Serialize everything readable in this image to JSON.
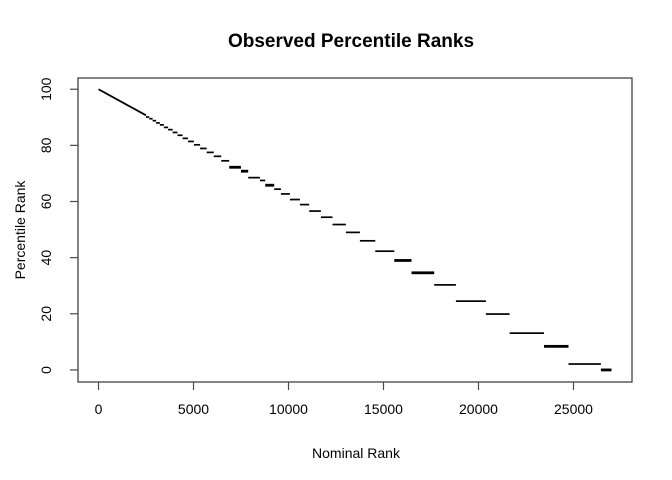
{
  "figure": {
    "background": "#ffffff",
    "foreground": "#000000",
    "frame_color": "#333333",
    "tick_color": "#4a4a4a"
  },
  "chart_data": {
    "type": "scatter",
    "title": "Observed Percentile Ranks",
    "xlabel": "Nominal Rank",
    "ylabel": "Percentile Rank",
    "point_color": "#000000",
    "n_points": 27000,
    "xlim": [
      -1080,
      28080
    ],
    "ylim": [
      -4.3,
      104
    ],
    "grid": false,
    "legend": false,
    "x_ticks": {
      "values": [
        0,
        5000,
        10000,
        15000,
        20000,
        25000
      ],
      "labels": [
        "0",
        "5000",
        "10000",
        "15000",
        "20000",
        "25000"
      ]
    },
    "y_ticks": {
      "values": [
        0,
        20,
        40,
        60,
        80,
        100
      ],
      "labels": [
        "0",
        "20",
        "40",
        "60",
        "80",
        "100"
      ]
    },
    "relationship": "observed percentile = 100 * (1 - tie_group_end / 27000); tie groups lengthen toward high nominal ranks",
    "dense_line": {
      "x_start": 0,
      "y_start": 100,
      "x_end": 2500,
      "y_end": 90.7
    },
    "tie_segments": [
      [
        2500,
        2673,
        90.1,
        1
      ],
      [
        2673,
        2847,
        89.5,
        1
      ],
      [
        2847,
        3032,
        88.8,
        1
      ],
      [
        3032,
        3229,
        88.0,
        1
      ],
      [
        3229,
        3439,
        87.3,
        1
      ],
      [
        3439,
        3663,
        86.4,
        1
      ],
      [
        3663,
        3901,
        85.6,
        1
      ],
      [
        3901,
        4155,
        84.6,
        1
      ],
      [
        4155,
        4425,
        83.6,
        1
      ],
      [
        4425,
        4713,
        82.5,
        1
      ],
      [
        4713,
        5020,
        81.4,
        1
      ],
      [
        5020,
        5346,
        80.2,
        1
      ],
      [
        5346,
        5694,
        78.9,
        1
      ],
      [
        5694,
        6065,
        77.5,
        1
      ],
      [
        6065,
        6459,
        76.1,
        1
      ],
      [
        6459,
        6879,
        74.5,
        1
      ],
      [
        6879,
        7495,
        72.2,
        2
      ],
      [
        7495,
        7879,
        70.8,
        2
      ],
      [
        7879,
        8495,
        68.5,
        1
      ],
      [
        8495,
        8774,
        67.5,
        1
      ],
      [
        8774,
        9247,
        65.8,
        2
      ],
      [
        9247,
        9600,
        64.4,
        1
      ],
      [
        9600,
        10074,
        62.7,
        1
      ],
      [
        10074,
        10600,
        60.7,
        1
      ],
      [
        10600,
        11089,
        58.9,
        1
      ],
      [
        11089,
        11705,
        56.6,
        1
      ],
      [
        11705,
        12316,
        54.4,
        1
      ],
      [
        12316,
        13021,
        51.8,
        1
      ],
      [
        13021,
        13758,
        49.0,
        1
      ],
      [
        13758,
        14568,
        46.0,
        1
      ],
      [
        14568,
        15568,
        42.3,
        1
      ],
      [
        15568,
        16474,
        39.0,
        2
      ],
      [
        16474,
        17668,
        34.6,
        2
      ],
      [
        17668,
        18811,
        30.3,
        1
      ],
      [
        18811,
        20389,
        24.5,
        1
      ],
      [
        20389,
        21640,
        19.9,
        1
      ],
      [
        21640,
        23450,
        13.1,
        1
      ],
      [
        23450,
        24737,
        8.4,
        2
      ],
      [
        24737,
        26442,
        2.1,
        1
      ],
      [
        26442,
        27000,
        0.0,
        2
      ]
    ]
  }
}
